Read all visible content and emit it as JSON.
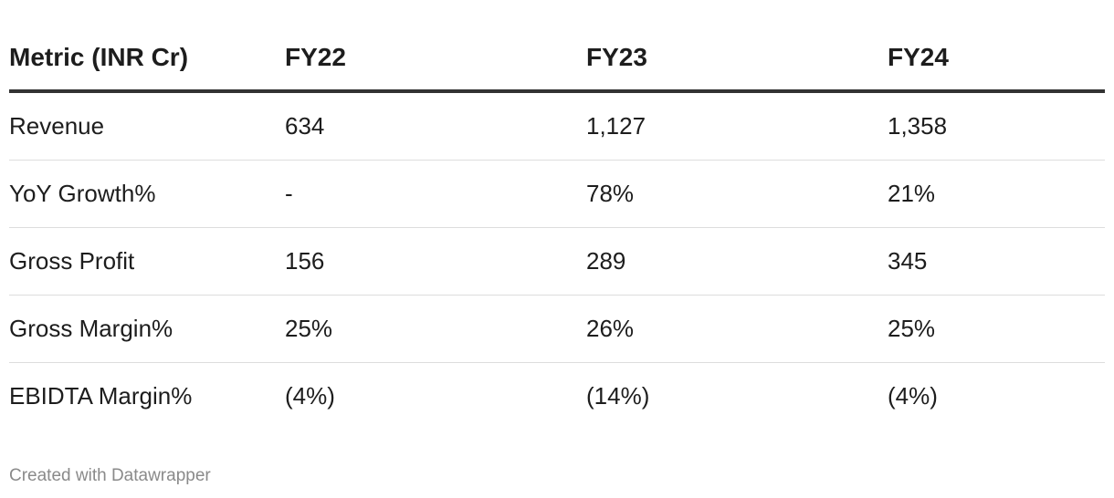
{
  "table": {
    "header": [
      "Metric (INR Cr)",
      "FY22",
      "FY23",
      "FY24"
    ],
    "rows": [
      [
        "Revenue",
        "634",
        "1,127",
        "1,358"
      ],
      [
        "YoY Growth%",
        "-",
        "78%",
        "21%"
      ],
      [
        "Gross Profit",
        "156",
        "289",
        "345"
      ],
      [
        "Gross Margin%",
        "25%",
        "26%",
        "25%"
      ],
      [
        "EBIDTA Margin%",
        "(4%)",
        "(14%)",
        "(4%)"
      ]
    ]
  },
  "footer": "Created with Datawrapper"
}
